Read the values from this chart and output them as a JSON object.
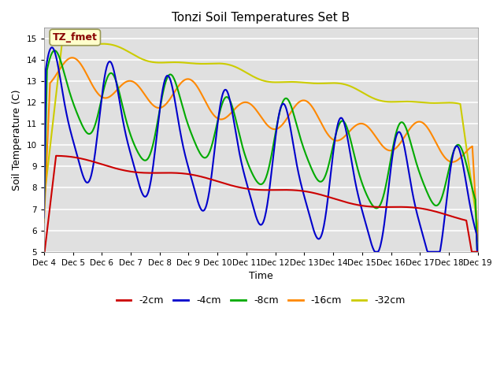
{
  "title": "Tonzi Soil Temperatures Set B",
  "xlabel": "Time",
  "ylabel": "Soil Temperature (C)",
  "ylim": [
    5.0,
    15.5
  ],
  "yticks": [
    5.0,
    6.0,
    7.0,
    8.0,
    9.0,
    10.0,
    11.0,
    12.0,
    13.0,
    14.0,
    15.0
  ],
  "colors": {
    "-2cm": "#cc0000",
    "-4cm": "#0000cc",
    "-8cm": "#00aa00",
    "-16cm": "#ff8800",
    "-32cm": "#cccc00"
  },
  "xtick_labels": [
    "Dec 4",
    "Dec 5",
    "Dec 6",
    "Dec 7",
    "Dec 8",
    "Dec 9",
    "Dec 10",
    "Dec 11",
    "Dec 12",
    "Dec 13",
    "Dec 14",
    "Dec 15",
    "Dec 16",
    "Dec 17",
    "Dec 18",
    "Dec 19"
  ],
  "annotation_text": "TZ_fmet",
  "annotation_color": "#880000",
  "annotation_bg": "#ffffcc",
  "background_color": "#e0e0e0",
  "legend_entries": [
    "-2cm",
    "-4cm",
    "-8cm",
    "-16cm",
    "-32cm"
  ]
}
